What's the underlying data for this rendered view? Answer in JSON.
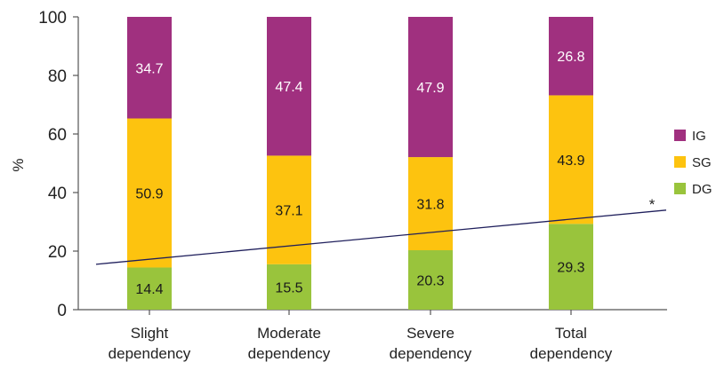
{
  "chart_data": {
    "type": "bar",
    "stacked": true,
    "categories": [
      "Slight dependency",
      "Moderate dependency",
      "Severe dependency",
      "Total dependency"
    ],
    "category_lines": [
      [
        "Slight",
        "dependency"
      ],
      [
        "Moderate",
        "dependency"
      ],
      [
        "Severe",
        "dependency"
      ],
      [
        "Total",
        "dependency"
      ]
    ],
    "series": [
      {
        "name": "DG",
        "color": "#99c43c",
        "label_color": "#1a1a1a",
        "values": [
          14.4,
          15.5,
          20.3,
          29.3
        ]
      },
      {
        "name": "SG",
        "color": "#fdc30f",
        "label_color": "#1a1a1a",
        "values": [
          50.9,
          37.1,
          31.8,
          43.9
        ]
      },
      {
        "name": "IG",
        "color": "#a0307f",
        "label_color": "#ffffff",
        "values": [
          34.7,
          47.4,
          47.9,
          26.8
        ]
      }
    ],
    "legend_order": [
      "IG",
      "SG",
      "DG"
    ],
    "legend_position": "right",
    "ylabel": "%",
    "ylim": [
      0,
      100
    ],
    "yticks": [
      0,
      20,
      40,
      60,
      80,
      100
    ],
    "grid": false,
    "trend_line": {
      "start_value": 15.5,
      "end_value": 34,
      "color": "#1f1f5c"
    },
    "annotation": "*"
  }
}
